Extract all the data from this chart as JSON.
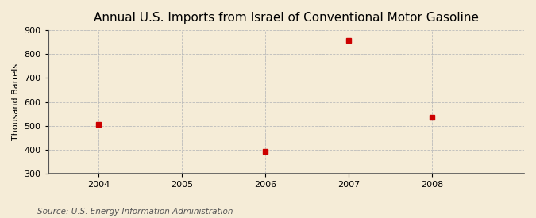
{
  "title": "Annual U.S. Imports from Israel of Conventional Motor Gasoline",
  "ylabel": "Thousand Barrels",
  "source_text": "Source: U.S. Energy Information Administration",
  "x_values": [
    2004,
    2006,
    2007,
    2008
  ],
  "y_values": [
    507,
    393,
    858,
    534
  ],
  "xlim": [
    2003.4,
    2009.1
  ],
  "ylim": [
    300,
    900
  ],
  "yticks": [
    300,
    400,
    500,
    600,
    700,
    800,
    900
  ],
  "xticks": [
    2004,
    2005,
    2006,
    2007,
    2008
  ],
  "marker_color": "#cc0000",
  "marker": "s",
  "marker_size": 4,
  "bg_color": "#f5ecd7",
  "grid_color": "#bbbbbb",
  "title_fontsize": 11,
  "label_fontsize": 8,
  "tick_fontsize": 8,
  "source_fontsize": 7.5
}
